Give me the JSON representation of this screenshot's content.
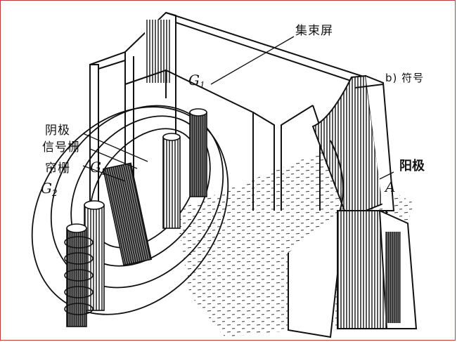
{
  "labels": {
    "focus_screen": "集束屏",
    "g1_top": "G",
    "g1_top_sub": "1",
    "b_symbol": "b) 符号",
    "cathode": "阴极",
    "signal_grid": "信号栅",
    "g1_mid": "G",
    "g1_mid_sub": "1",
    "screen_grid": "帘栅",
    "g2": "G",
    "g2_sub": "2",
    "anode_cn": "阳极",
    "anode_letter": "A"
  },
  "colors": {
    "ink": "#111111",
    "paper": "#ffffff",
    "border": "#c23a3a"
  }
}
